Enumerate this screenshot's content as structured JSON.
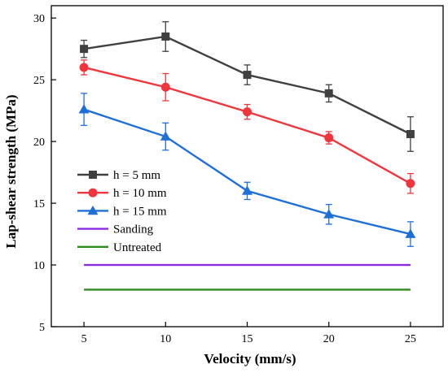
{
  "chart_data": {
    "type": "line",
    "xlabel": "Velocity (mm/s)",
    "ylabel": "Lap-shear strength (MPa)",
    "xlim": [
      3,
      27
    ],
    "ylim": [
      5,
      31
    ],
    "x_ticks": [
      5,
      10,
      15,
      20,
      25
    ],
    "y_ticks": [
      5,
      10,
      15,
      20,
      25,
      30
    ],
    "x": [
      5,
      10,
      15,
      20,
      25
    ],
    "grid": false,
    "legend_position": "left-middle",
    "series": [
      {
        "name": "h = 5 mm",
        "color": "#404040",
        "marker": "square",
        "values": [
          27.5,
          28.5,
          25.4,
          23.9,
          20.6
        ],
        "errors": [
          0.7,
          1.2,
          0.8,
          0.7,
          1.4
        ]
      },
      {
        "name": "h = 10 mm",
        "color": "#f0353d",
        "marker": "circle",
        "values": [
          26.0,
          24.4,
          22.4,
          20.3,
          16.6
        ],
        "errors": [
          0.6,
          1.1,
          0.6,
          0.5,
          0.8
        ]
      },
      {
        "name": "h = 15 mm",
        "color": "#1f6fd9",
        "marker": "triangle",
        "values": [
          22.6,
          20.4,
          16.0,
          14.1,
          12.5
        ],
        "errors": [
          1.3,
          1.1,
          0.7,
          0.8,
          1.0
        ]
      },
      {
        "name": "Sanding",
        "color": "#8a2be2",
        "marker": "none",
        "values": [
          10,
          10,
          10,
          10,
          10
        ],
        "errors": null
      },
      {
        "name": "Untreated",
        "color": "#2e8b1e",
        "marker": "none",
        "values": [
          8,
          8,
          8,
          8,
          8
        ],
        "errors": null
      }
    ]
  }
}
